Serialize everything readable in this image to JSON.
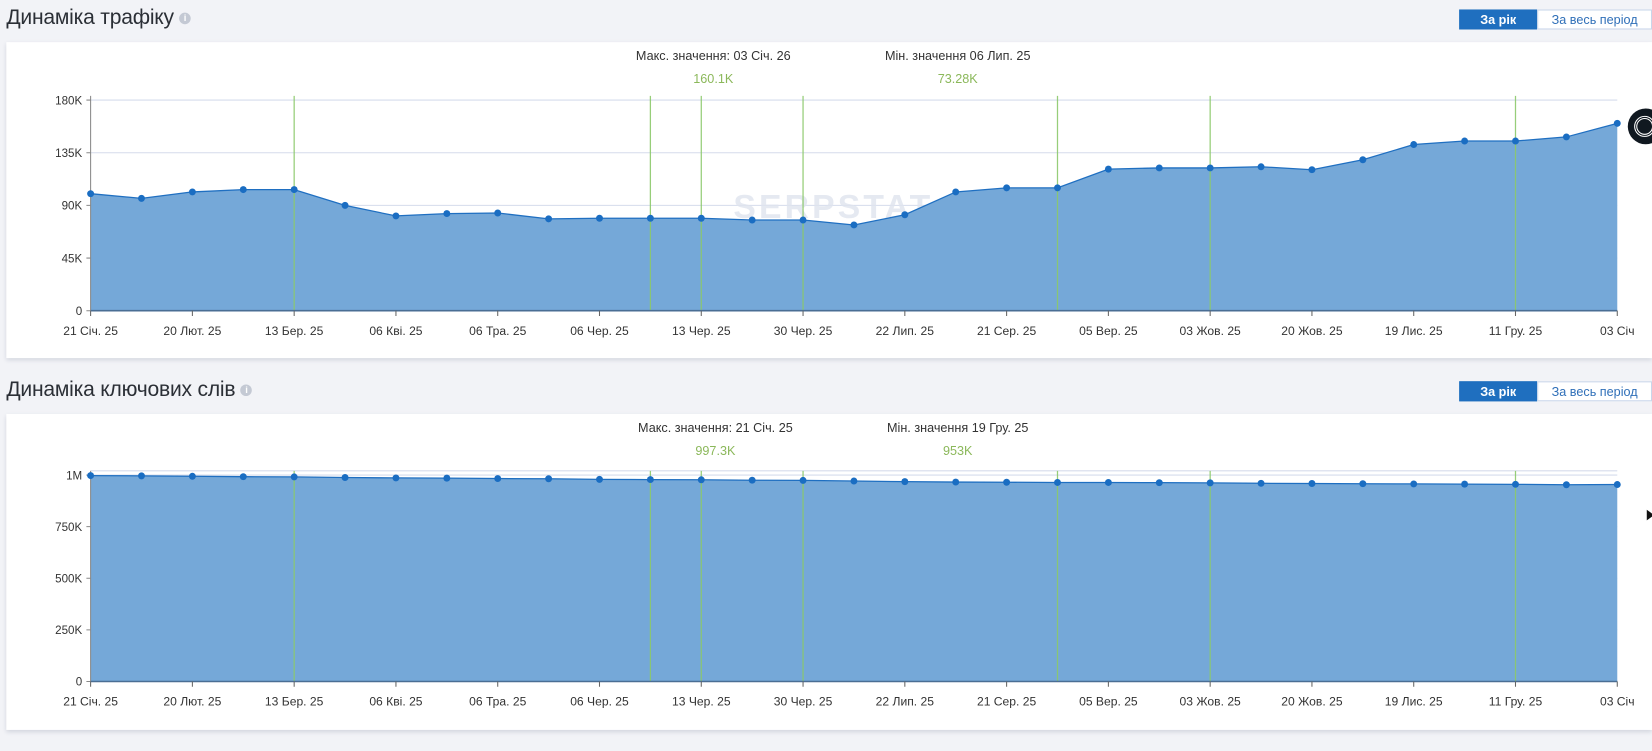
{
  "sections": [
    {
      "title": "Динаміка трафіку",
      "period_toggle": {
        "active": "За рік",
        "inactive": "За весь період"
      },
      "max_label": "Макс. значення: 03 Січ. 26",
      "max_value": "160.1K",
      "min_label": "Мін. значення 06 Лип. 25",
      "min_value": "73.28K"
    },
    {
      "title": "Динаміка ключових слів",
      "period_toggle": {
        "active": "За рік",
        "inactive": "За весь період"
      },
      "max_label": "Макс. значення: 21 Січ. 25",
      "max_value": "997.3K",
      "min_label": "Мін. значення 19 Гру. 25",
      "min_value": "953K"
    }
  ],
  "watermark": "SERPSTAT",
  "colors": {
    "fill": "#75a8d8",
    "line": "#1f6fc1",
    "point": "#1a6dc2",
    "marker": "#8cc96b",
    "accent_value": "#8bb85a",
    "toggle_active": "#1f6fbf"
  },
  "chart_data": [
    {
      "type": "area",
      "title": "Динаміка трафіку",
      "x_tick_labels": [
        "21 Січ. 25",
        "20 Лют. 25",
        "13 Бер. 25",
        "06 Кві. 25",
        "06 Тра. 25",
        "06 Чер. 25",
        "13 Чер. 25",
        "30 Чер. 25",
        "22 Лип. 25",
        "21 Сер. 25",
        "05 Вер. 25",
        "03 Жов. 25",
        "20 Жов. 25",
        "19 Лис. 25",
        "11 Гру. 25",
        "03 Січ"
      ],
      "values": [
        100000,
        96000,
        101500,
        103500,
        103500,
        90000,
        81000,
        83000,
        83500,
        78500,
        79000,
        79000,
        79000,
        77500,
        77500,
        73280,
        82000,
        101500,
        105000,
        105000,
        121000,
        122000,
        122000,
        123000,
        120500,
        129000,
        142000,
        145000,
        145000,
        148500,
        160100
      ],
      "y_ticks": [
        "0",
        "45K",
        "90K",
        "135K",
        "180K"
      ],
      "ylim": [
        0,
        180000
      ],
      "marker_point_indices": [
        4,
        11,
        12,
        14,
        19,
        22,
        28
      ],
      "grid": true
    },
    {
      "type": "area",
      "title": "Динаміка ключових слів",
      "x_tick_labels": [
        "21 Січ. 25",
        "20 Лют. 25",
        "13 Бер. 25",
        "06 Кві. 25",
        "06 Тра. 25",
        "06 Чер. 25",
        "13 Чер. 25",
        "30 Чер. 25",
        "22 Лип. 25",
        "21 Сер. 25",
        "05 Вер. 25",
        "03 Жов. 25",
        "20 Жов. 25",
        "19 Лис. 25",
        "11 Гру. 25",
        "03 Січ"
      ],
      "values": [
        997300,
        996000,
        994000,
        992000,
        991000,
        988000,
        986000,
        985000,
        983000,
        982000,
        979000,
        978000,
        977000,
        975000,
        974000,
        971000,
        968000,
        966000,
        965000,
        964000,
        964000,
        963000,
        962000,
        960000,
        959000,
        958000,
        957000,
        956000,
        955000,
        953000,
        954000
      ],
      "y_ticks": [
        "0",
        "250K",
        "500K",
        "750K",
        "1M"
      ],
      "ylim": [
        0,
        1000000
      ],
      "marker_point_indices": [
        4,
        11,
        12,
        14,
        19,
        22,
        28
      ],
      "grid": true
    }
  ]
}
